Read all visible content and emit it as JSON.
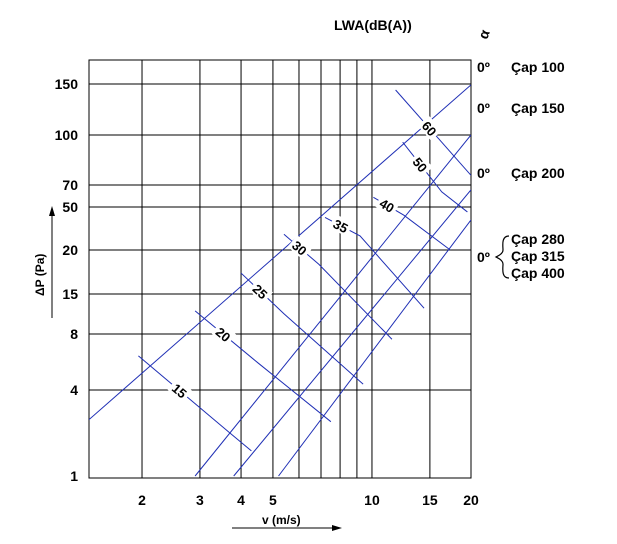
{
  "chart_data": {
    "type": "line",
    "title": "LWA(dB(A))",
    "xlabel": "v (m/s)",
    "ylabel": "ΔP (Pa)",
    "x_ticks": [
      "2",
      "3",
      "4",
      "5",
      "10",
      "15",
      "20"
    ],
    "y_ticks": [
      "1",
      "4",
      "8",
      "15",
      "20",
      "50",
      "70",
      "100",
      "150"
    ],
    "angle_symbol": "α",
    "angle_label": "0º",
    "series": [
      {
        "name": "Çap 100",
        "values": [
          [
            1.3,
            2.2
          ],
          [
            20,
            149
          ]
        ]
      },
      {
        "name": "Çap 150",
        "values": [
          [
            2.9,
            1.0
          ],
          [
            20,
            100
          ]
        ]
      },
      {
        "name": "Çap 200",
        "values": [
          [
            3.8,
            1.0
          ],
          [
            20,
            65
          ]
        ]
      },
      {
        "name": "Çap 280",
        "values": [
          [
            5.2,
            1.0
          ],
          [
            20,
            38
          ]
        ]
      }
    ],
    "group_labels": [
      "Çap 280",
      "Çap 315",
      "Çap 400"
    ],
    "contours": [
      {
        "label": "15",
        "values": [
          [
            1.95,
            6.1
          ],
          [
            3.7,
            2.0
          ],
          [
            4.3,
            1.5
          ]
        ]
      },
      {
        "label": "20",
        "values": [
          [
            2.9,
            11.5
          ],
          [
            4.5,
            5.6
          ],
          [
            7.5,
            2.4
          ]
        ]
      },
      {
        "label": "25",
        "values": [
          [
            4.0,
            17.2
          ],
          [
            5.4,
            11.0
          ],
          [
            9.4,
            4.3
          ]
        ]
      },
      {
        "label": "30",
        "values": [
          [
            5.4,
            28.0
          ],
          [
            6.9,
            18.2
          ],
          [
            11.5,
            7.5
          ]
        ]
      },
      {
        "label": "35",
        "values": [
          [
            7.2,
            40.0
          ],
          [
            9.2,
            27.0
          ],
          [
            14.4,
            12.0
          ]
        ]
      },
      {
        "label": "40",
        "values": [
          [
            10.1,
            58.0
          ],
          [
            12.5,
            42.0
          ],
          [
            17.3,
            20.0
          ]
        ]
      },
      {
        "label": "50",
        "values": [
          [
            12.4,
            95.0
          ],
          [
            16.3,
            63.0
          ],
          [
            19.5,
            45.0
          ]
        ]
      },
      {
        "label": "60",
        "values": [
          [
            11.8,
            143.0
          ],
          [
            20,
            75.0
          ]
        ]
      }
    ]
  }
}
